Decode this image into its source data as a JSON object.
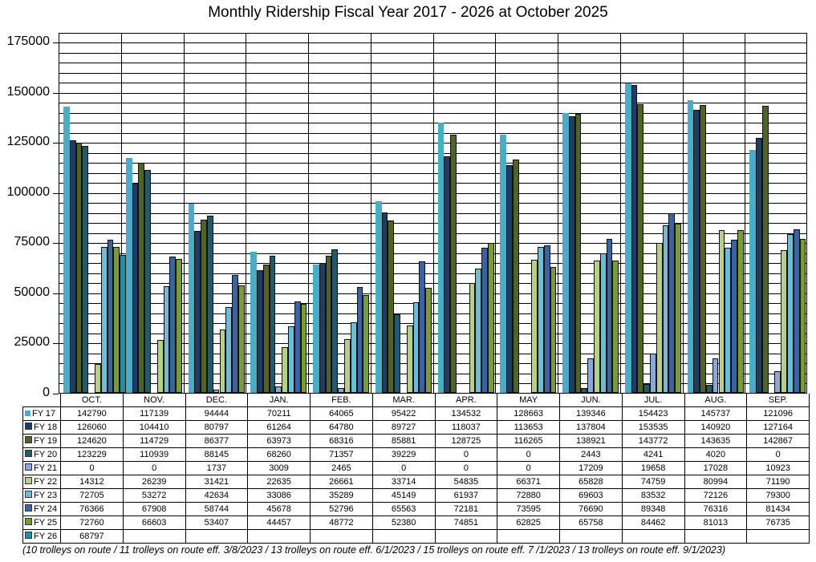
{
  "chart_data": {
    "type": "bar",
    "title": "Monthly Ridership Fiscal Year 2017 - 2026 at October 2025",
    "xlabel": "",
    "ylabel": "",
    "ylim": [
      0,
      175000
    ],
    "yticks": [
      0,
      25000,
      50000,
      75000,
      100000,
      125000,
      150000,
      175000
    ],
    "ytick_labels": [
      "0",
      "25000",
      "50000",
      "75000",
      "100000",
      "125000",
      "150000",
      "175000"
    ],
    "minor_grid_step": 5000,
    "grid": true,
    "legend_position": "data-table",
    "categories": [
      "OCT.",
      "NOV.",
      "DEC.",
      "JAN.",
      "FEB.",
      "MAR.",
      "APR.",
      "MAY",
      "JUN.",
      "JUL.",
      "AUG.",
      "SEP."
    ],
    "series": [
      {
        "name": "FY 17",
        "color": "#4bacc6",
        "values": [
          142790,
          117139,
          94444,
          70211,
          64065,
          95422,
          134532,
          128663,
          139346,
          154423,
          145737,
          121096
        ]
      },
      {
        "name": "FY 18",
        "color": "#1f3d63",
        "values": [
          126060,
          104410,
          80797,
          61264,
          64780,
          89727,
          118037,
          113653,
          137804,
          153535,
          140920,
          127164
        ]
      },
      {
        "name": "FY 19",
        "color": "#4f6228",
        "values": [
          124620,
          114729,
          86377,
          63973,
          68316,
          85881,
          128725,
          116265,
          138921,
          143772,
          143635,
          142867
        ]
      },
      {
        "name": "FY 20",
        "color": "#215a69",
        "values": [
          123229,
          110939,
          88145,
          68260,
          71357,
          39229,
          0,
          0,
          2443,
          4241,
          4020,
          0
        ]
      },
      {
        "name": "FY 21",
        "color": "#8aa9d6",
        "values": [
          0,
          0,
          1737,
          3009,
          2465,
          0,
          0,
          0,
          17209,
          19658,
          17028,
          10923
        ]
      },
      {
        "name": "FY 22",
        "color": "#b8cf8a",
        "values": [
          14312,
          26239,
          31421,
          22635,
          26661,
          33714,
          54835,
          66371,
          65828,
          74759,
          80994,
          71190
        ]
      },
      {
        "name": "FY 23",
        "color": "#6fbcd8",
        "values": [
          72705,
          53272,
          42634,
          33086,
          35289,
          45149,
          61937,
          72880,
          69603,
          83532,
          72126,
          79300
        ]
      },
      {
        "name": "FY 24",
        "color": "#3a64a0",
        "values": [
          76366,
          67908,
          58744,
          45678,
          52796,
          65563,
          72181,
          73595,
          76690,
          89348,
          76316,
          81434
        ]
      },
      {
        "name": "FY 25",
        "color": "#7a9a3e",
        "values": [
          72760,
          66603,
          53407,
          44457,
          48772,
          52380,
          74851,
          62825,
          65758,
          84462,
          81013,
          76735
        ]
      },
      {
        "name": "FY 26",
        "color": "#2e8aa0",
        "values": [
          68797,
          null,
          null,
          null,
          null,
          null,
          null,
          null,
          null,
          null,
          null,
          null
        ]
      }
    ]
  },
  "table": {
    "rows": [
      {
        "label": "FY 17",
        "cells": [
          "142790",
          "117139",
          "94444",
          "70211",
          "64065",
          "95422",
          "134532",
          "128663",
          "139346",
          "154423",
          "145737",
          "121096"
        ]
      },
      {
        "label": "FY 18",
        "cells": [
          "126060",
          "104410",
          "80797",
          "61264",
          "64780",
          "89727",
          "118037",
          "113653",
          "137804",
          "153535",
          "140920",
          "127164"
        ]
      },
      {
        "label": "FY 19",
        "cells": [
          "124620",
          "114729",
          "86377",
          "63973",
          "68316",
          "85881",
          "128725",
          "116265",
          "138921",
          "143772",
          "143635",
          "142867"
        ]
      },
      {
        "label": "FY 20",
        "cells": [
          "123229",
          "110939",
          "88145",
          "68260",
          "71357",
          "39229",
          "0",
          "0",
          "2443",
          "4241",
          "4020",
          "0"
        ]
      },
      {
        "label": "FY 21",
        "cells": [
          "0",
          "0",
          "1737",
          "3009",
          "2465",
          "0",
          "0",
          "0",
          "17209",
          "19658",
          "17028",
          "10923"
        ]
      },
      {
        "label": "FY 22",
        "cells": [
          "14312",
          "26239",
          "31421",
          "22635",
          "26661",
          "33714",
          "54835",
          "66371",
          "65828",
          "74759",
          "80994",
          "71190"
        ]
      },
      {
        "label": "FY 23",
        "cells": [
          "72705",
          "53272",
          "42634",
          "33086",
          "35289",
          "45149",
          "61937",
          "72880",
          "69603",
          "83532",
          "72126",
          "79300"
        ]
      },
      {
        "label": "FY 24",
        "cells": [
          "76366",
          "67908",
          "58744",
          "45678",
          "52796",
          "65563",
          "72181",
          "73595",
          "76690",
          "89348",
          "76316",
          "81434"
        ]
      },
      {
        "label": "FY 25",
        "cells": [
          "72760",
          "66603",
          "53407",
          "44457",
          "48772",
          "52380",
          "74851",
          "62825",
          "65758",
          "84462",
          "81013",
          "76735"
        ]
      },
      {
        "label": "FY 26",
        "cells": [
          "68797",
          "",
          "",
          "",
          "",
          "",
          "",
          "",
          "",
          "",
          "",
          ""
        ]
      }
    ]
  },
  "footnote": "(10 trolleys on route / 11 trolleys on route eff. 3/8/2023 / 13 trolleys on route eff. 6/1/2023 / 15 trolleys on route eff. 7 /1/2023 / 13 trolleys on route eff. 9/1/2023)"
}
